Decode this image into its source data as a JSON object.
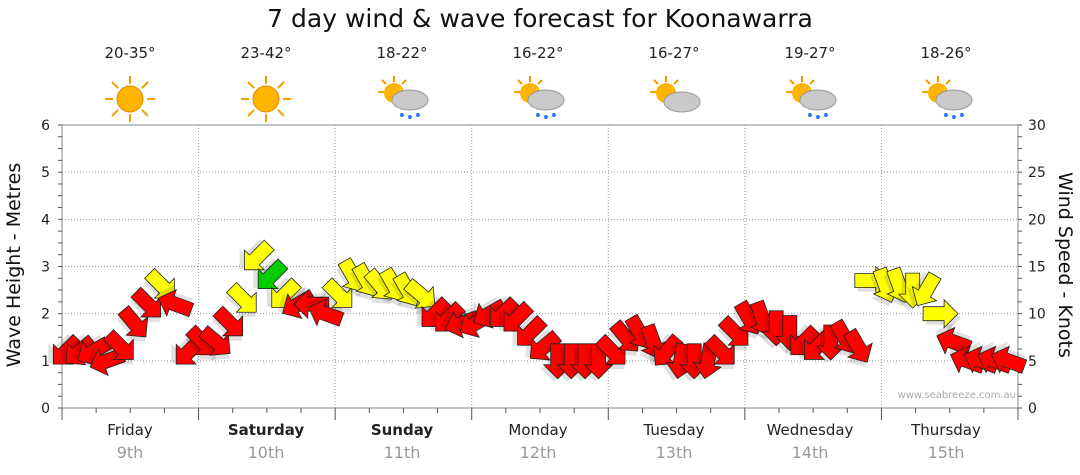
{
  "title": "7 day wind & wave forecast for Koonawarra",
  "axes": {
    "left_label": "Wave Height - Metres",
    "right_label": "Wind Speed - Knots"
  },
  "credit": "www.seabreeze.com.au",
  "days": [
    {
      "name": "Friday",
      "date": "9th",
      "temp": "20-35°",
      "icon": "sunny-icon",
      "bold": false
    },
    {
      "name": "Saturday",
      "date": "10th",
      "temp": "23-42°",
      "icon": "sunny-icon",
      "bold": true
    },
    {
      "name": "Sunday",
      "date": "11th",
      "temp": "18-22°",
      "icon": "sun-rain-icon",
      "bold": true
    },
    {
      "name": "Monday",
      "date": "12th",
      "temp": "16-22°",
      "icon": "sun-rain-icon",
      "bold": false
    },
    {
      "name": "Tuesday",
      "date": "13th",
      "temp": "16-27°",
      "icon": "sun-cloud-icon",
      "bold": false
    },
    {
      "name": "Wednesday",
      "date": "14th",
      "temp": "19-27°",
      "icon": "sun-rain-icon",
      "bold": false
    },
    {
      "name": "Thursday",
      "date": "15th",
      "temp": "18-26°",
      "icon": "sun-rain-icon",
      "bold": false
    }
  ],
  "colors": {
    "strong": "#ff0000",
    "moderate": "#ffff00",
    "light": "#00cc00",
    "grid": "#999999",
    "sun": "#ffaa00"
  },
  "chart_data": {
    "type": "line",
    "title": "7 day wind & wave forecast for Koonawarra",
    "ylabel": "Wave Height - Metres",
    "y2label": "Wind Speed - Knots",
    "ylim": [
      0,
      6
    ],
    "y2lim": [
      0,
      30
    ],
    "yticks": [
      0,
      1,
      2,
      3,
      4,
      5,
      6
    ],
    "y2ticks": [
      0,
      5,
      10,
      15,
      20,
      25,
      30
    ],
    "grid": true,
    "categories": [
      "Friday 9th",
      "Saturday 10th",
      "Sunday 11th",
      "Monday 12th",
      "Tuesday 13th",
      "Wednesday 14th",
      "Thursday 15th"
    ],
    "series": [
      {
        "name": "Wind Speed (knots)",
        "x": [
          0.0,
          0.1,
          0.2,
          0.3,
          0.4,
          0.5,
          0.6,
          0.7,
          0.8,
          0.9,
          1.0,
          1.1,
          1.2,
          1.3,
          1.4,
          1.5,
          1.6,
          1.7,
          1.8,
          1.9,
          2.0,
          2.1,
          2.2,
          2.3,
          2.4,
          2.5,
          2.6,
          2.7,
          2.8,
          2.9,
          3.0,
          3.1,
          3.2,
          3.3,
          3.4,
          3.5,
          3.6,
          3.7,
          3.8,
          3.9,
          4.0,
          4.1,
          4.2,
          4.3,
          4.4,
          4.5,
          4.6,
          4.7,
          4.8,
          4.9,
          5.0,
          5.1,
          5.2,
          5.3,
          5.4,
          5.5,
          5.6,
          5.7,
          5.8,
          5.9,
          6.0,
          6.1,
          6.2,
          6.3,
          6.4,
          6.5,
          6.6,
          6.7,
          6.8,
          6.9
        ],
        "values": [
          6.0,
          6.0,
          6.0,
          5.0,
          6.5,
          9.0,
          11.0,
          13.0,
          11.0,
          6.0,
          7.0,
          7.0,
          9.0,
          11.5,
          16.0,
          14.0,
          12.0,
          11.0,
          11.0,
          10.0,
          12.0,
          14.0,
          13.5,
          13.0,
          13.0,
          12.5,
          12.0,
          10.0,
          9.5,
          9.0,
          9.0,
          10.0,
          10.0,
          9.5,
          8.0,
          6.5,
          5.0,
          5.0,
          5.0,
          5.0,
          6.0,
          7.5,
          8.0,
          7.0,
          6.0,
          5.0,
          5.0,
          5.0,
          6.0,
          8.0,
          9.5,
          9.5,
          8.5,
          8.0,
          7.0,
          6.5,
          7.0,
          7.5,
          6.5,
          13.5,
          13.0,
          13.0,
          12.5,
          12.5,
          10.0,
          7.0,
          5.0,
          5.0,
          5.0,
          5.0
        ],
        "levels": [
          "strong",
          "strong",
          "strong",
          "strong",
          "strong",
          "strong",
          "strong",
          "moderate",
          "strong",
          "strong",
          "strong",
          "strong",
          "strong",
          "moderate",
          "moderate",
          "light",
          "moderate",
          "strong",
          "strong",
          "strong",
          "moderate",
          "moderate",
          "moderate",
          "moderate",
          "moderate",
          "moderate",
          "moderate",
          "strong",
          "strong",
          "strong",
          "strong",
          "strong",
          "strong",
          "strong",
          "strong",
          "strong",
          "strong",
          "strong",
          "strong",
          "strong",
          "strong",
          "strong",
          "strong",
          "strong",
          "strong",
          "strong",
          "strong",
          "strong",
          "strong",
          "strong",
          "strong",
          "strong",
          "strong",
          "strong",
          "strong",
          "strong",
          "strong",
          "strong",
          "strong",
          "moderate",
          "moderate",
          "moderate",
          "moderate",
          "moderate",
          "moderate",
          "strong",
          "strong",
          "strong",
          "strong",
          "strong"
        ],
        "direction_deg": [
          135,
          140,
          150,
          160,
          45,
          50,
          45,
          45,
          200,
          135,
          45,
          40,
          45,
          45,
          135,
          135,
          135,
          150,
          180,
          200,
          45,
          60,
          60,
          50,
          60,
          60,
          40,
          135,
          135,
          160,
          150,
          150,
          135,
          135,
          135,
          140,
          90,
          90,
          90,
          90,
          45,
          50,
          60,
          70,
          130,
          100,
          90,
          100,
          45,
          45,
          60,
          70,
          90,
          90,
          135,
          135,
          90,
          60,
          60,
          0,
          70,
          70,
          90,
          120,
          0,
          200,
          200,
          200,
          200,
          200
        ]
      }
    ]
  }
}
